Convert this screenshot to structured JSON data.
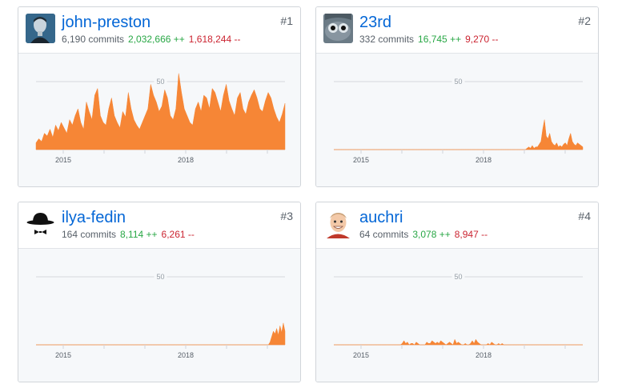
{
  "contributors": [
    {
      "username": "john-preston",
      "commits": "6,190 commits",
      "additions": "2,032,666 ++",
      "deletions": "1,618,244 --",
      "rank": "#1",
      "avatar": "portrait-avatar",
      "chart_data": {
        "type": "area",
        "y_tick": "50",
        "y_tick_value": 50,
        "x_ticks": [
          "2015",
          "2018"
        ],
        "fill_color": "#f68636",
        "values": [
          5,
          8,
          6,
          12,
          10,
          15,
          9,
          18,
          14,
          20,
          16,
          12,
          22,
          18,
          25,
          30,
          20,
          15,
          35,
          28,
          22,
          40,
          45,
          25,
          20,
          18,
          30,
          38,
          25,
          20,
          16,
          28,
          24,
          42,
          30,
          22,
          18,
          15,
          20,
          25,
          30,
          48,
          40,
          35,
          28,
          32,
          44,
          38,
          25,
          22,
          30,
          56,
          42,
          30,
          25,
          20,
          18,
          30,
          35,
          28,
          40,
          38,
          30,
          45,
          42,
          35,
          28,
          40,
          48,
          36,
          30,
          25,
          38,
          42,
          30,
          26,
          35,
          40,
          44,
          38,
          30,
          28,
          36,
          42,
          38,
          30,
          24,
          20,
          26,
          34
        ]
      }
    },
    {
      "username": "23rd",
      "commits": "332 commits",
      "additions": "16,745 ++",
      "deletions": "9,270 --",
      "rank": "#2",
      "avatar": "creature-avatar",
      "chart_data": {
        "type": "area",
        "y_tick": "50",
        "y_tick_value": 50,
        "x_ticks": [
          "2015",
          "2018"
        ],
        "fill_color": "#f68636",
        "values": [
          0,
          0,
          0,
          0,
          0,
          0,
          0,
          0,
          0,
          0,
          0,
          0,
          0,
          0,
          0,
          0,
          0,
          0,
          0,
          0,
          0,
          0,
          0,
          0,
          0,
          0,
          0,
          0,
          0,
          0,
          0,
          0,
          0,
          0,
          0,
          0,
          0,
          0,
          0,
          0,
          0,
          0,
          0,
          0,
          0,
          0,
          0,
          0,
          0,
          0,
          0,
          0,
          0,
          0,
          0,
          0,
          0,
          0,
          0,
          0,
          0,
          0,
          0,
          0,
          0,
          0,
          0,
          0,
          0,
          0,
          0,
          0,
          0,
          0,
          0,
          0,
          0,
          0,
          0,
          0,
          0,
          0,
          0,
          0,
          0,
          0,
          0,
          0,
          0,
          0,
          0,
          0,
          0,
          0,
          0,
          0,
          0,
          0,
          0,
          0,
          0,
          0,
          0,
          0,
          0,
          0,
          0,
          0,
          0,
          0,
          0,
          1,
          2,
          1,
          3,
          1,
          2,
          2,
          4,
          6,
          15,
          22,
          10,
          8,
          12,
          6,
          4,
          3,
          5,
          2,
          3,
          2,
          4,
          5,
          3,
          8,
          12,
          6,
          4,
          3,
          5,
          4,
          3,
          2
        ]
      }
    },
    {
      "username": "ilya-fedin",
      "commits": "164 commits",
      "additions": "8,114 ++",
      "deletions": "6,261 --",
      "rank": "#3",
      "avatar": "hat-avatar",
      "chart_data": {
        "type": "area",
        "y_tick": "50",
        "y_tick_value": 50,
        "x_ticks": [
          "2015",
          "2018"
        ],
        "fill_color": "#f68636",
        "values": [
          0,
          0,
          0,
          0,
          0,
          0,
          0,
          0,
          0,
          0,
          0,
          0,
          0,
          0,
          0,
          0,
          0,
          0,
          0,
          0,
          0,
          0,
          0,
          0,
          0,
          0,
          0,
          0,
          0,
          0,
          0,
          0,
          0,
          0,
          0,
          0,
          0,
          0,
          0,
          0,
          0,
          0,
          0,
          0,
          0,
          0,
          0,
          0,
          0,
          0,
          0,
          0,
          0,
          0,
          0,
          0,
          0,
          0,
          0,
          0,
          0,
          0,
          0,
          0,
          0,
          0,
          0,
          0,
          0,
          0,
          0,
          0,
          0,
          0,
          0,
          0,
          0,
          0,
          0,
          0,
          0,
          0,
          0,
          0,
          0,
          0,
          0,
          0,
          0,
          0,
          0,
          0,
          0,
          0,
          0,
          0,
          0,
          0,
          0,
          0,
          0,
          0,
          0,
          0,
          0,
          0,
          0,
          0,
          0,
          0,
          0,
          0,
          0,
          0,
          0,
          0,
          0,
          0,
          0,
          0,
          0,
          0,
          0,
          0,
          0,
          0,
          0,
          0,
          0,
          0,
          0,
          0,
          0,
          0,
          0,
          0,
          0,
          0,
          0,
          0,
          0,
          2,
          6,
          10,
          8,
          12,
          7,
          14,
          9,
          16,
          10
        ]
      }
    },
    {
      "username": "auchri",
      "commits": "64 commits",
      "additions": "3,078 ++",
      "deletions": "8,947 --",
      "rank": "#4",
      "avatar": "cartoon-avatar",
      "chart_data": {
        "type": "area",
        "y_tick": "50",
        "y_tick_value": 50,
        "x_ticks": [
          "2015",
          "2018"
        ],
        "fill_color": "#f68636",
        "values": [
          0,
          0,
          0,
          0,
          0,
          0,
          0,
          0,
          0,
          0,
          0,
          0,
          0,
          0,
          0,
          0,
          0,
          0,
          0,
          0,
          0,
          0,
          0,
          0,
          0,
          0,
          0,
          0,
          0,
          0,
          0,
          0,
          0,
          0,
          0,
          0,
          0,
          0,
          0,
          1,
          3,
          1,
          2,
          0,
          1,
          1,
          0,
          2,
          1,
          0,
          0,
          0,
          0,
          2,
          1,
          1,
          3,
          2,
          1,
          2,
          1,
          3,
          2,
          1,
          0,
          1,
          2,
          1,
          0,
          4,
          1,
          2,
          1,
          0,
          0,
          1,
          0,
          0,
          1,
          3,
          1,
          4,
          2,
          1,
          0,
          0,
          0,
          0,
          1,
          0,
          2,
          1,
          0,
          0,
          1,
          0,
          1,
          0,
          0,
          0,
          0,
          0,
          0,
          0,
          0,
          0,
          0,
          0,
          0,
          0,
          0,
          0,
          0,
          0,
          0,
          0,
          0,
          0,
          0,
          0,
          0,
          0,
          0,
          0,
          0,
          0,
          0,
          0,
          0,
          0,
          0,
          0,
          0,
          0,
          0,
          0,
          0,
          0,
          0,
          0,
          0,
          0,
          0
        ]
      }
    }
  ]
}
